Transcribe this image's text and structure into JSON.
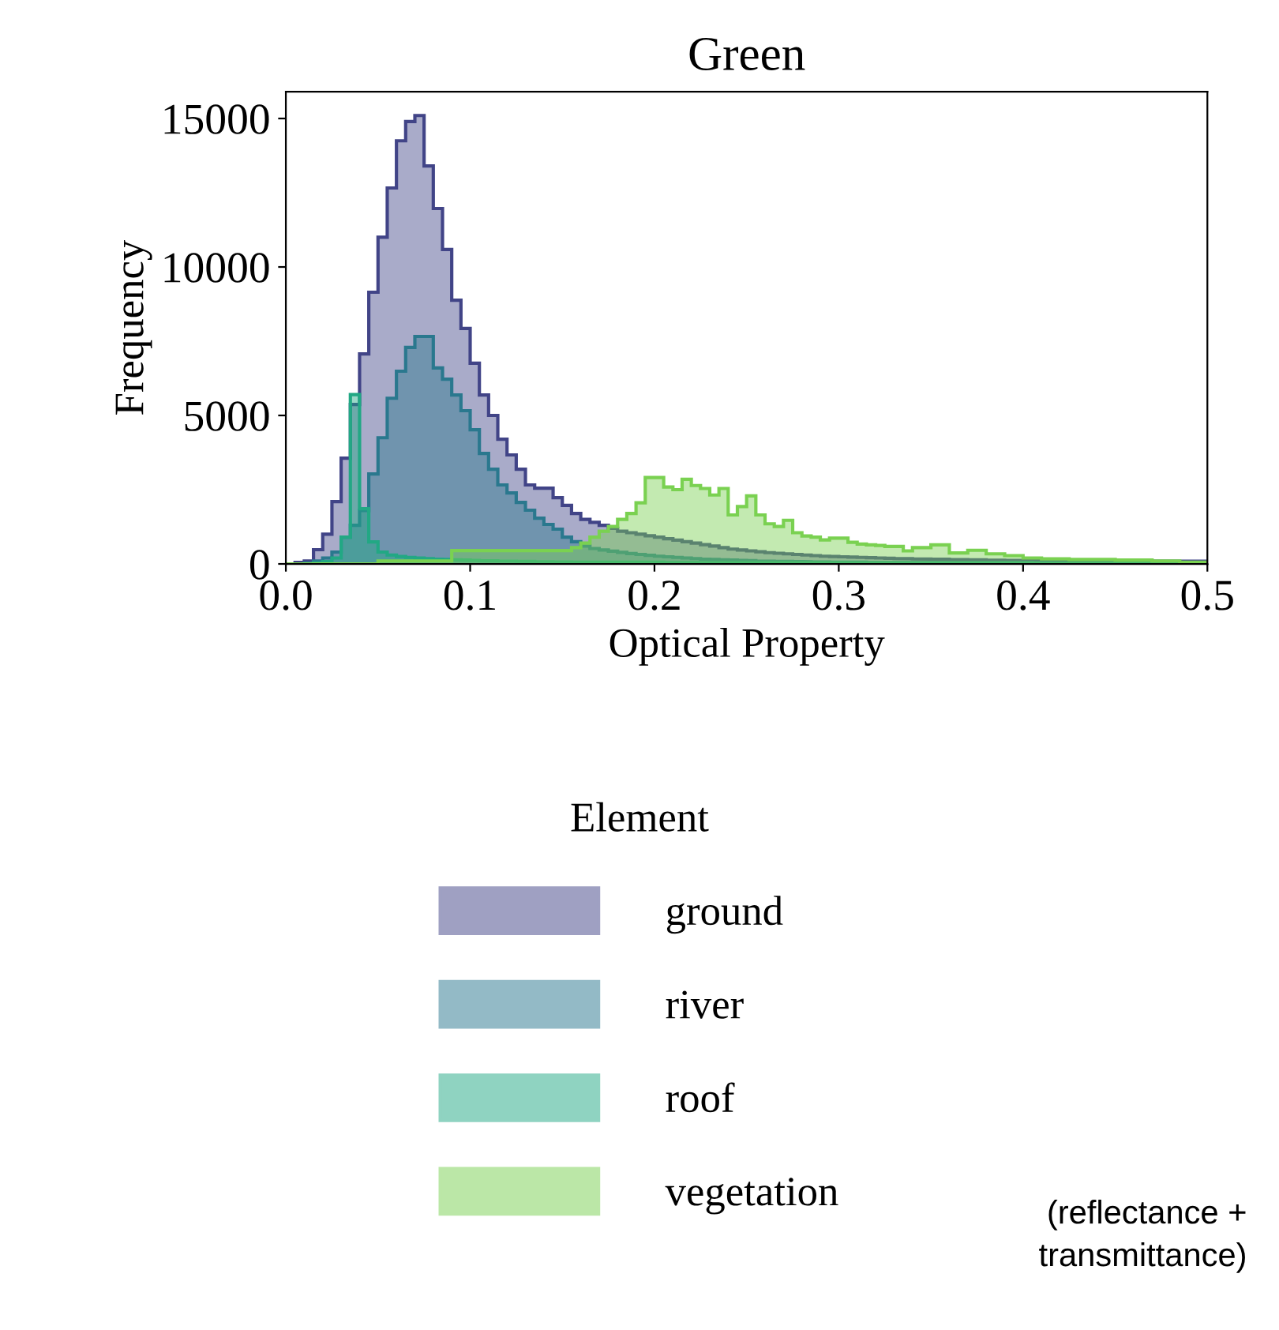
{
  "chart_data": {
    "type": "histogram",
    "title": "Green",
    "xlabel": "Optical Property",
    "ylabel": "Frequency",
    "legend_title": "Element",
    "legend": "bottom",
    "grid": false,
    "xlim": [
      0,
      0.5
    ],
    "ylim": [
      0,
      15900
    ],
    "xticks": [
      {
        "value": 0,
        "label": "0.0"
      },
      0.1,
      0.2,
      0.3,
      0.4,
      0.5
    ],
    "yticks": [
      0,
      5000,
      10000,
      15000
    ],
    "bins": [
      0,
      0.005,
      0.01,
      0.015,
      0.02,
      0.025,
      0.03,
      0.035,
      0.04,
      0.045,
      0.05,
      0.055,
      0.06,
      0.065,
      0.07,
      0.075,
      0.08,
      0.085,
      0.09,
      0.095,
      0.1,
      0.105,
      0.11,
      0.115,
      0.12,
      0.125,
      0.13,
      0.135,
      0.14,
      0.145,
      0.15,
      0.155,
      0.16,
      0.165,
      0.17,
      0.175,
      0.18,
      0.185,
      0.19,
      0.195,
      0.2,
      0.205,
      0.21,
      0.215,
      0.22,
      0.225,
      0.23,
      0.235,
      0.24,
      0.245,
      0.25,
      0.255,
      0.26,
      0.265,
      0.27,
      0.275,
      0.28,
      0.285,
      0.29,
      0.295,
      0.3,
      0.305,
      0.31,
      0.315,
      0.32,
      0.325,
      0.33,
      0.335,
      0.34,
      0.345,
      0.35,
      0.355,
      0.36,
      0.365,
      0.37,
      0.375,
      0.38,
      0.385,
      0.39,
      0.395,
      0.4,
      0.405,
      0.41,
      0.415,
      0.42,
      0.425,
      0.43,
      0.435,
      0.44,
      0.445,
      0.45,
      0.455,
      0.46,
      0.465,
      0.47,
      0.475,
      0.48,
      0.485,
      0.49,
      0.495,
      0.5
    ],
    "series": [
      {
        "name": "ground",
        "color": "#414487",
        "values": [
          0,
          50,
          100,
          480,
          1000,
          2100,
          3560,
          5370,
          7070,
          9150,
          11000,
          12660,
          14250,
          14900,
          15100,
          13400,
          11970,
          10590,
          8880,
          7930,
          6760,
          5690,
          5000,
          4200,
          3670,
          3190,
          2660,
          2550,
          2550,
          2230,
          1970,
          1700,
          1500,
          1400,
          1300,
          1200,
          1100,
          1050,
          1000,
          950,
          900,
          850,
          800,
          750,
          700,
          650,
          600,
          550,
          500,
          470,
          440,
          410,
          380,
          360,
          340,
          320,
          300,
          280,
          260,
          250,
          240,
          230,
          220,
          210,
          200,
          190,
          180,
          175,
          170,
          165,
          160,
          155,
          150,
          145,
          140,
          135,
          130,
          125,
          120,
          120,
          115,
          115,
          110,
          110,
          105,
          105,
          100,
          100,
          100,
          100,
          95,
          95,
          95,
          90,
          90,
          90,
          90,
          90,
          90,
          90
        ]
      },
      {
        "name": "river",
        "color": "#2a788e",
        "values": [
          0,
          0,
          30,
          100,
          200,
          400,
          900,
          1300,
          1800,
          3030,
          4250,
          5580,
          6490,
          7290,
          7660,
          7660,
          6600,
          6220,
          5690,
          5160,
          4520,
          3720,
          3190,
          2660,
          2390,
          2070,
          1810,
          1540,
          1330,
          1170,
          900,
          750,
          600,
          520,
          470,
          430,
          390,
          350,
          320,
          290,
          260,
          240,
          220,
          200,
          180,
          160,
          150,
          140,
          130,
          120,
          110,
          100,
          95,
          90,
          85,
          80,
          75,
          70,
          65,
          60,
          60,
          55,
          55,
          50,
          50,
          50,
          50,
          50,
          50,
          50,
          50,
          50,
          50,
          45,
          45,
          45,
          45,
          45,
          45,
          45,
          45,
          45,
          45,
          40,
          40,
          40,
          40,
          40,
          40,
          40,
          40,
          40,
          40,
          35,
          35,
          35,
          35,
          35,
          35,
          35
        ]
      },
      {
        "name": "roof",
        "color": "#22a884",
        "values": [
          0,
          0,
          0,
          30,
          80,
          200,
          900,
          5700,
          1860,
          740,
          400,
          300,
          250,
          220,
          200,
          180,
          160,
          150,
          140,
          130,
          120,
          110,
          105,
          100,
          95,
          90,
          85,
          80,
          75,
          70,
          65,
          60,
          60,
          60,
          60,
          60,
          60,
          60,
          60,
          60,
          60,
          50,
          50,
          50,
          50,
          50,
          50,
          50,
          50,
          50,
          50,
          45,
          45,
          45,
          45,
          45,
          45,
          45,
          45,
          45,
          45,
          40,
          40,
          40,
          40,
          40,
          40,
          40,
          40,
          40,
          40,
          35,
          35,
          35,
          35,
          35,
          35,
          35,
          35,
          35,
          35,
          30,
          30,
          30,
          30,
          30,
          30,
          30,
          30,
          30,
          30,
          25,
          25,
          25,
          25,
          25,
          25,
          25,
          25,
          25
        ]
      },
      {
        "name": "vegetation",
        "color": "#7ad151",
        "values": [
          0,
          0,
          0,
          0,
          0,
          0,
          0,
          0,
          0,
          0,
          100,
          100,
          100,
          100,
          100,
          100,
          100,
          100,
          450,
          450,
          450,
          450,
          450,
          450,
          450,
          450,
          450,
          450,
          450,
          450,
          450,
          550,
          700,
          900,
          1100,
          1260,
          1500,
          1700,
          2060,
          2910,
          2910,
          2590,
          2500,
          2850,
          2640,
          2540,
          2320,
          2540,
          1650,
          1930,
          2290,
          1650,
          1350,
          1260,
          1470,
          1050,
          940,
          900,
          810,
          870,
          870,
          730,
          670,
          640,
          620,
          590,
          590,
          440,
          550,
          550,
          640,
          640,
          370,
          370,
          460,
          460,
          340,
          340,
          280,
          280,
          200,
          200,
          170,
          170,
          170,
          150,
          150,
          150,
          150,
          150,
          130,
          130,
          130,
          130,
          100,
          100,
          100,
          60,
          60,
          60
        ]
      }
    ],
    "annotations": [
      "(reflectance +\ntransmittance)"
    ]
  }
}
